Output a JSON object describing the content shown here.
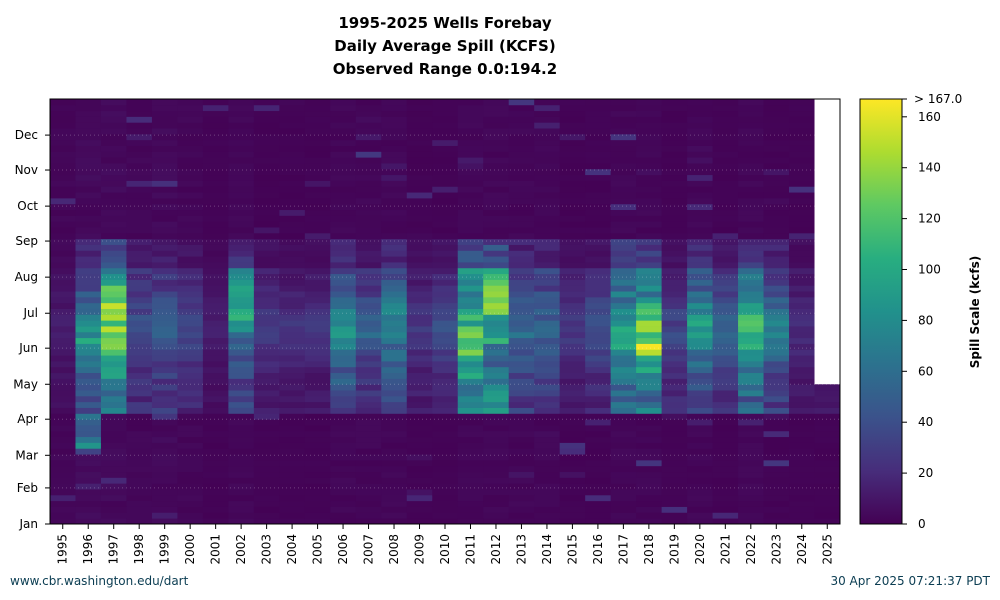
{
  "chart_data": {
    "type": "heatmap",
    "title": [
      "1995-2025 Wells Forebay",
      "Daily Average Spill (KCFS)",
      "Observed Range 0.0:194.2"
    ],
    "x_categories": [
      "1995",
      "1996",
      "1997",
      "1998",
      "1999",
      "2000",
      "2001",
      "2002",
      "2003",
      "2004",
      "2005",
      "2006",
      "2007",
      "2008",
      "2009",
      "2010",
      "2011",
      "2012",
      "2013",
      "2014",
      "2015",
      "2016",
      "2017",
      "2018",
      "2019",
      "2020",
      "2021",
      "2022",
      "2023",
      "2024",
      "2025"
    ],
    "y_ticks": [
      "Jan",
      "Feb",
      "Mar",
      "Apr",
      "May",
      "Jun",
      "Jul",
      "Aug",
      "Sep",
      "Oct",
      "Nov",
      "Dec"
    ],
    "y_range": [
      "Jan 1",
      "Dec 31"
    ],
    "colorbar": {
      "label": "Spill Scale (kcfs)",
      "ticks": [
        0,
        20,
        40,
        60,
        80,
        100,
        120,
        140,
        160
      ],
      "max_label": "> 167.0",
      "range": [
        0,
        167
      ],
      "colormap": "viridis"
    },
    "no_data": {
      "year": "2025",
      "from_month": "May"
    },
    "approx_daily_spill_kcfs": [
      {
        "year": "1995",
        "baseline": 2,
        "spring": 8,
        "peak": 15
      },
      {
        "year": "1996",
        "baseline": 3,
        "spring": 40,
        "peak": 100,
        "peak_month": "Jun",
        "other_peak": {
          "month": "Mar",
          "value": 90
        }
      },
      {
        "year": "1997",
        "baseline": 3,
        "spring": 90,
        "peak": 167,
        "peak_month": "Jun-Jul"
      },
      {
        "year": "1998",
        "baseline": 2,
        "spring": 25,
        "peak": 45
      },
      {
        "year": "1999",
        "baseline": 3,
        "spring": 30,
        "peak": 60
      },
      {
        "year": "2000",
        "baseline": 2,
        "spring": 20,
        "peak": 40
      },
      {
        "year": "2001",
        "baseline": 1,
        "spring": 8,
        "peak": 15
      },
      {
        "year": "2002",
        "baseline": 2,
        "spring": 40,
        "peak": 130,
        "peak_month": "Jul"
      },
      {
        "year": "2003",
        "baseline": 1,
        "spring": 15,
        "peak": 35
      },
      {
        "year": "2004",
        "baseline": 1,
        "spring": 12,
        "peak": 30
      },
      {
        "year": "2005",
        "baseline": 1,
        "spring": 12,
        "peak": 30
      },
      {
        "year": "2006",
        "baseline": 2,
        "spring": 45,
        "peak": 100
      },
      {
        "year": "2007",
        "baseline": 2,
        "spring": 25,
        "peak": 60
      },
      {
        "year": "2008",
        "baseline": 2,
        "spring": 40,
        "peak": 90
      },
      {
        "year": "2009",
        "baseline": 1,
        "spring": 15,
        "peak": 30
      },
      {
        "year": "2010",
        "baseline": 1,
        "spring": 18,
        "peak": 50
      },
      {
        "year": "2011",
        "baseline": 2,
        "spring": 80,
        "peak": 150,
        "peak_month": "Jun"
      },
      {
        "year": "2012",
        "baseline": 2,
        "spring": 80,
        "peak": 150,
        "peak_month": "Jul"
      },
      {
        "year": "2013",
        "baseline": 2,
        "spring": 35,
        "peak": 65
      },
      {
        "year": "2014",
        "baseline": 2,
        "spring": 35,
        "peak": 65
      },
      {
        "year": "2015",
        "baseline": 1,
        "spring": 15,
        "peak": 35
      },
      {
        "year": "2016",
        "baseline": 1,
        "spring": 20,
        "peak": 50
      },
      {
        "year": "2017",
        "baseline": 2,
        "spring": 60,
        "peak": 110
      },
      {
        "year": "2018",
        "baseline": 2,
        "spring": 70,
        "peak": 167,
        "peak_month": "Jun"
      },
      {
        "year": "2019",
        "baseline": 1,
        "spring": 20,
        "peak": 40
      },
      {
        "year": "2020",
        "baseline": 2,
        "spring": 50,
        "peak": 110
      },
      {
        "year": "2021",
        "baseline": 1,
        "spring": 30,
        "peak": 60
      },
      {
        "year": "2022",
        "baseline": 2,
        "spring": 60,
        "peak": 130
      },
      {
        "year": "2023",
        "baseline": 1,
        "spring": 35,
        "peak": 80
      },
      {
        "year": "2024",
        "baseline": 1,
        "spring": 12,
        "peak": 25
      },
      {
        "year": "2025",
        "baseline": 1,
        "spring": 12,
        "peak": 20
      }
    ]
  },
  "footer": {
    "left": "www.cbr.washington.edu/dart",
    "right": "30 Apr 2025 07:21:37 PDT"
  }
}
